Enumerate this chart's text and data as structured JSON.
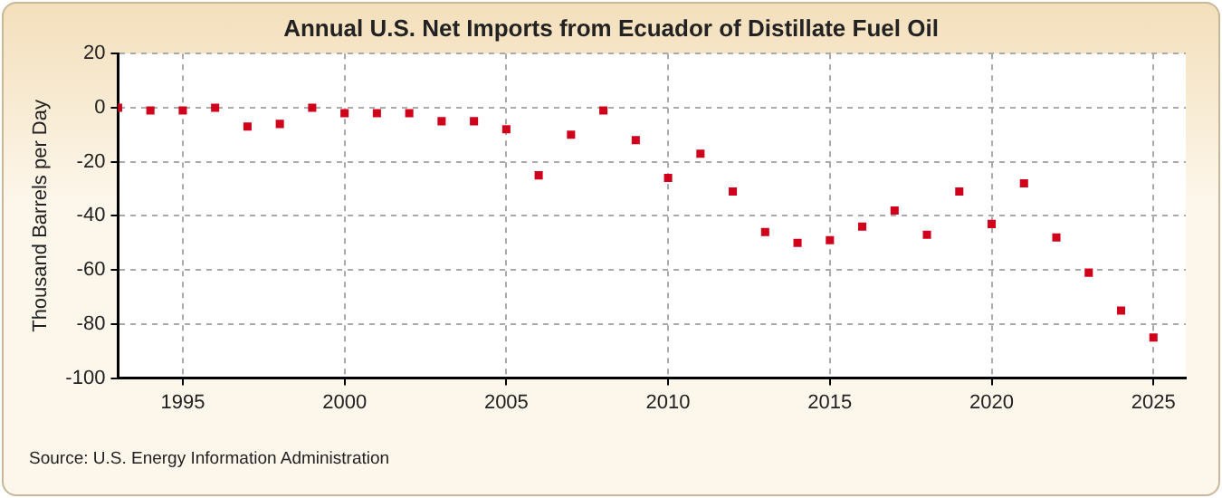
{
  "chart_data": {
    "type": "scatter",
    "title": "Annual U.S. Net Imports from Ecuador of Distillate Fuel Oil",
    "ylabel": "Thousand Barrels per Day",
    "annotations": [
      "Source: U.S. Energy Information Administration"
    ],
    "x": [
      1993,
      1994,
      1995,
      1996,
      1997,
      1998,
      1999,
      2000,
      2001,
      2002,
      2003,
      2004,
      2005,
      2006,
      2007,
      2008,
      2009,
      2010,
      2011,
      2012,
      2013,
      2014,
      2015,
      2016,
      2017,
      2018,
      2019,
      2020,
      2021,
      2022,
      2023,
      2024,
      2025
    ],
    "series": [
      {
        "color": "#d0021b",
        "values": [
          0,
          -1,
          -1,
          0,
          -7,
          -6,
          0,
          -2,
          -2,
          -2,
          -5,
          -5,
          -8,
          -25,
          -10,
          -1,
          -12,
          -26,
          -17,
          -31,
          -46,
          -50,
          -49,
          -44,
          -38,
          -47,
          -31,
          -43,
          -28,
          -48,
          -61,
          -75,
          -85
        ]
      }
    ],
    "xlim": [
      1993,
      2026
    ],
    "xticks": [
      1995,
      2000,
      2005,
      2010,
      2015,
      2020,
      2025
    ],
    "ylim": [
      -100,
      20
    ],
    "yticks": [
      -100,
      -80,
      -60,
      -40,
      -20,
      0,
      20
    ],
    "grid": true,
    "legend": false,
    "marker": "square"
  }
}
